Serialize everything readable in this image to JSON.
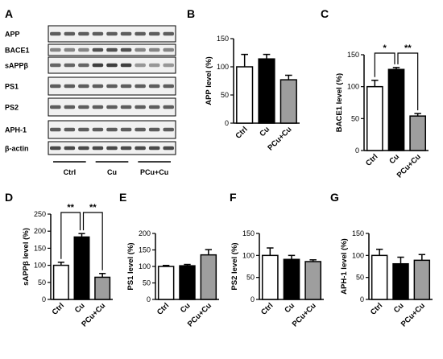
{
  "blot": {
    "panel_label": "A",
    "rows": [
      "APP",
      "BACE1",
      "sAPPβ",
      "PS1",
      "PS2",
      "APH-1",
      "β-actin"
    ],
    "groups": [
      "Ctrl",
      "Cu",
      "PCu+Cu"
    ],
    "lanes_per_group": 3
  },
  "colors": {
    "Ctrl": "#ffffff",
    "Cu": "#000000",
    "PCu+Cu": "#9e9e9e"
  },
  "chart_data": [
    {
      "id": "B",
      "panel_label": "B",
      "type": "bar",
      "categories": [
        "Ctrl",
        "Cu",
        "PCu+Cu"
      ],
      "values": [
        100,
        114,
        77
      ],
      "errors": [
        22,
        8,
        8
      ],
      "ylabel": "APP level (%)",
      "ylim": [
        0,
        150
      ],
      "yticks": [
        0,
        50,
        100,
        150
      ],
      "sig": []
    },
    {
      "id": "C",
      "panel_label": "C",
      "type": "bar",
      "categories": [
        "Ctrl",
        "Cu",
        "PCu+Cu"
      ],
      "values": [
        100,
        127,
        54
      ],
      "errors": [
        10,
        3,
        4
      ],
      "ylabel": "BACE1 level (%)",
      "ylim": [
        0,
        150
      ],
      "yticks": [
        0,
        50,
        100,
        150
      ],
      "sig": [
        {
          "from": 0,
          "to": 1,
          "label": "*"
        },
        {
          "from": 1,
          "to": 2,
          "label": "**"
        }
      ]
    },
    {
      "id": "D",
      "panel_label": "D",
      "type": "bar",
      "categories": [
        "Ctrl",
        "Cu",
        "PCu+Cu"
      ],
      "values": [
        100,
        183,
        65
      ],
      "errors": [
        9,
        10,
        11
      ],
      "ylabel": "sAPPβ level (%)",
      "ylim": [
        0,
        250
      ],
      "yticks": [
        0,
        50,
        100,
        150,
        200,
        250
      ],
      "sig": [
        {
          "from": 0,
          "to": 1,
          "label": "**"
        },
        {
          "from": 1,
          "to": 2,
          "label": "**"
        }
      ]
    },
    {
      "id": "E",
      "panel_label": "E",
      "type": "bar",
      "categories": [
        "Ctrl",
        "Cu",
        "PCu+Cu"
      ],
      "values": [
        100,
        102,
        135
      ],
      "errors": [
        3,
        4,
        16
      ],
      "ylabel": "PS1 level (%)",
      "ylim": [
        0,
        200
      ],
      "yticks": [
        0,
        50,
        100,
        150,
        200
      ],
      "sig": []
    },
    {
      "id": "F",
      "panel_label": "F",
      "type": "bar",
      "categories": [
        "Ctrl",
        "Cu",
        "PCu+Cu"
      ],
      "values": [
        100,
        91,
        86
      ],
      "errors": [
        17,
        9,
        4
      ],
      "ylabel": "PS2 level (%)",
      "ylim": [
        0,
        150
      ],
      "yticks": [
        0,
        50,
        100,
        150
      ],
      "sig": []
    },
    {
      "id": "G",
      "panel_label": "G",
      "type": "bar",
      "categories": [
        "Ctrl",
        "Cu",
        "PCu+Cu"
      ],
      "values": [
        100,
        81,
        89
      ],
      "errors": [
        14,
        15,
        13
      ],
      "ylabel": "APH-1 level (%)",
      "ylim": [
        0,
        150
      ],
      "yticks": [
        0,
        50,
        100,
        150
      ],
      "sig": []
    }
  ]
}
